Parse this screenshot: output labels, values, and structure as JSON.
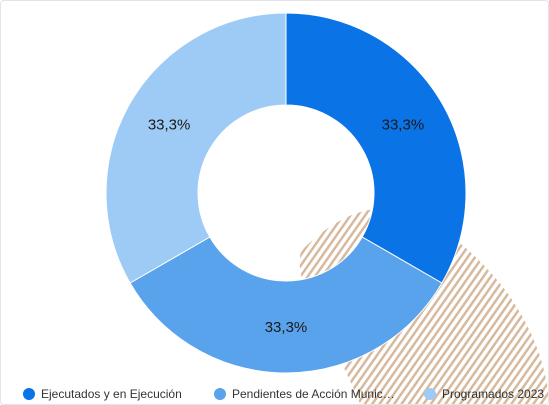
{
  "chart_data": {
    "type": "pie",
    "donut": true,
    "categories": [
      "Ejecutados y en Ejecución",
      "Pendientes de Acción Municipal",
      "Programados 2023"
    ],
    "values": [
      33.3,
      33.3,
      33.3
    ],
    "data_labels": [
      "33,3%",
      "33,3%",
      "33,3%"
    ],
    "colors": [
      "#0a73e6",
      "#59a2ec",
      "#9ecbf5"
    ],
    "legend_position": "bottom"
  },
  "legend": {
    "items": [
      {
        "label": "Ejecutados y en Ejecución",
        "color": "#0a73e6"
      },
      {
        "label": "Pendientes de Acción Munic…",
        "color": "#59a2ec"
      },
      {
        "label": "Programados 2023",
        "color": "#9ecbf5"
      }
    ]
  },
  "watermark_icon": "striped-map-watermark-icon"
}
